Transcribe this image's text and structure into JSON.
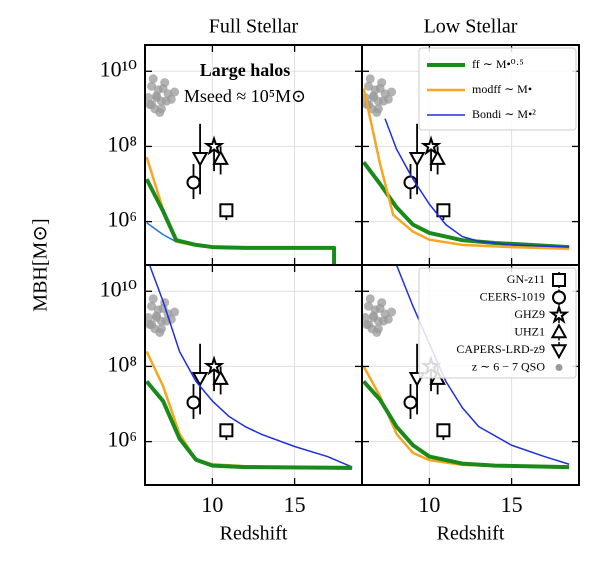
{
  "chart_data": [
    {
      "type": "line",
      "title": "Full Stellar",
      "ylabel": "MBH[M⊙]",
      "annotations": [
        "Large halos",
        "Mseed ≈ 10⁵M⊙"
      ],
      "log_y": true,
      "grid": true,
      "xlim": [
        5.9,
        19.1
      ],
      "ylim": [
        70000,
        50000000000
      ],
      "xticks": [
        10,
        15
      ],
      "yticks": [
        {
          "value": 1000000,
          "label": "10⁶"
        },
        {
          "value": 100000000,
          "label": "10⁸"
        },
        {
          "value": 10000000000,
          "label": "10¹⁰"
        }
      ],
      "series": [
        {
          "color": "#1f77e0",
          "x": [
            6,
            7,
            7.8,
            9,
            10,
            12,
            14,
            16,
            17.4
          ],
          "values": [
            930000.0,
            450000.0,
            290000.0,
            240000.0,
            220000.0,
            210000.0,
            210000.0,
            210000.0,
            210000.0
          ]
        },
        {
          "color": "#f5a623",
          "x": [
            6,
            7,
            7.8,
            9,
            10,
            12,
            14,
            16,
            17.4,
            17.4
          ],
          "values": [
            52000000.0,
            2100000.0,
            290000.0,
            230000.0,
            210000.0,
            200000.0,
            200000.0,
            200000.0,
            200000.0,
            10000.0
          ]
        },
        {
          "color": "#1a8a1a",
          "x": [
            6,
            7,
            7.8,
            9,
            10,
            12,
            14,
            16,
            17.4,
            17.4
          ],
          "values": [
            13500000.0,
            1900000.0,
            320000.0,
            240000.0,
            210000.0,
            200000.0,
            200000.0,
            200000.0,
            200000.0,
            10000.0
          ]
        }
      ]
    },
    {
      "type": "line",
      "title": "Low Stellar",
      "legend": "upper right",
      "log_y": true,
      "grid": true,
      "xlim": [
        5.9,
        19.1
      ],
      "ylim": [
        70000,
        50000000000
      ],
      "xticks": [
        10,
        15
      ],
      "yticks": [
        1000000,
        100000000,
        10000000000
      ],
      "series": [
        {
          "name": "ff ∼ M•⁰·⁵",
          "color": "#1a8a1a",
          "x": [
            6,
            7,
            8,
            9,
            10,
            12,
            14,
            18.5
          ],
          "values": [
            38000000.0,
            10000000.0,
            2400000.0,
            830000.0,
            500000.0,
            320000.0,
            270000.0,
            210000.0
          ]
        },
        {
          "name": "modff ∼ M•",
          "color": "#f5a623",
          "x": [
            6,
            7,
            7.8,
            9,
            10,
            12,
            15,
            18.5
          ],
          "values": [
            3500000000.0,
            34000000.0,
            1500000.0,
            540000.0,
            330000.0,
            240000.0,
            210000.0,
            190000.0
          ]
        },
        {
          "name": "Bondi ∼ M•²",
          "color": "#1f2fe0",
          "x": [
            7.3,
            8,
            9,
            10,
            11,
            12,
            13,
            15,
            18.5
          ],
          "values": [
            550000000.0,
            85000000.0,
            13500000.0,
            2900000.0,
            830000.0,
            400000.0,
            300000.0,
            240000.0,
            210000.0
          ]
        }
      ]
    },
    {
      "type": "line",
      "xlabel": "Redshift",
      "log_y": true,
      "grid": true,
      "xlim": [
        5.9,
        19.1
      ],
      "ylim": [
        70000,
        50000000000
      ],
      "xticks": [
        10,
        15
      ],
      "yticks": [
        {
          "value": 1000000,
          "label": "10⁶"
        },
        {
          "value": 100000000,
          "label": "10⁸"
        },
        {
          "value": 10000000000,
          "label": "10¹⁰"
        }
      ],
      "series": [
        {
          "color": "#1f2fe0",
          "x": [
            6.2,
            7,
            8,
            9,
            10,
            11,
            12,
            13,
            15,
            17,
            18.5
          ],
          "values": [
            47000000000.0,
            5400000000.0,
            250000000.0,
            40000000.0,
            12000000.0,
            4700000.0,
            2500000.0,
            1550000.0,
            740000.0,
            400000.0,
            210000.0
          ]
        },
        {
          "color": "#f5a623",
          "x": [
            6,
            7,
            8,
            9,
            10,
            12,
            18.5
          ],
          "values": [
            250000000.0,
            30000000.0,
            1600000.0,
            330000.0,
            250000.0,
            220000.0,
            190000.0
          ]
        },
        {
          "color": "#1a8a1a",
          "x": [
            6,
            7,
            8,
            9,
            10,
            12,
            18.5
          ],
          "values": [
            40000000.0,
            12000000.0,
            1200000.0,
            330000.0,
            230000.0,
            210000.0,
            200000.0
          ]
        }
      ]
    },
    {
      "type": "line",
      "xlabel": "Redshift",
      "legend": "upper right",
      "log_y": true,
      "grid": true,
      "xlim": [
        5.9,
        19.1
      ],
      "ylim": [
        70000,
        50000000000
      ],
      "xticks": [
        10,
        15
      ],
      "yticks": [
        1000000,
        100000000,
        10000000000
      ],
      "series": [
        {
          "color": "#1f2fe0",
          "x": [
            8,
            9,
            10,
            11,
            12,
            13,
            15,
            17,
            18.5
          ],
          "values": [
            50000000000.0,
            4000000000.0,
            400000000.0,
            40000000.0,
            8000000.0,
            2500000.0,
            800000.0,
            400000.0,
            250000.0
          ]
        },
        {
          "color": "#f5a623",
          "x": [
            6,
            7,
            8,
            9,
            10,
            12,
            18.5
          ],
          "values": [
            100000000.0,
            16000000.0,
            1600000.0,
            500000.0,
            320000.0,
            240000.0,
            200000.0
          ]
        },
        {
          "color": "#1a8a1a",
          "x": [
            6,
            7,
            8,
            9,
            10,
            12,
            14,
            18.5
          ],
          "values": [
            40000000.0,
            13000000.0,
            2500000.0,
            800000.0,
            400000.0,
            260000.0,
            230000.0,
            210000.0
          ]
        }
      ],
      "observations": [
        {
          "name": "GN-z11",
          "marker": "square",
          "x": 10.85,
          "y": 2000000.0,
          "ylow": 1100000.0,
          "yhigh": 2000000.0
        },
        {
          "name": "CEERS-1019",
          "marker": "circle",
          "x": 8.85,
          "y": 11000000.0,
          "ylow": 4000000.0,
          "yhigh": 34000000.0
        },
        {
          "name": "GHZ9",
          "marker": "star",
          "x": 10.1,
          "y": 100000000.0,
          "ylow": 22000000.0,
          "yhigh": 100000000.0
        },
        {
          "name": "UHZ1",
          "marker": "triangle-up",
          "x": 10.5,
          "y": 46000000.0,
          "ylow": 18000000.0,
          "yhigh": 100000000.0
        },
        {
          "name": "CAPERS-LRD-z9",
          "marker": "triangle-down",
          "x": 9.25,
          "y": 50000000.0,
          "ylow": 5300000.0,
          "yhigh": 400000000.0
        },
        {
          "name": "z ∼ 6 − 7 QSO",
          "marker": "dot",
          "color": "#9a9a9a",
          "x": [
            6.1,
            6.3,
            6.5,
            6.7,
            6.9,
            7.1,
            7.3,
            6.2,
            6.4,
            6.6,
            6.8,
            7.0,
            7.5,
            7.7,
            6.3,
            6.6,
            7.2,
            6.9
          ],
          "values": [
            2000000000.0,
            4000000000.0,
            1000000000.0,
            3200000000.0,
            1600000000.0,
            5000000000.0,
            2500000000.0,
            1300000000.0,
            6300000000.0,
            2200000000.0,
            800000000.0,
            3500000000.0,
            1800000000.0,
            2800000000.0,
            1300000000.0,
            2000000000.0,
            1600000000.0,
            1000000000.0
          ]
        }
      ]
    }
  ]
}
